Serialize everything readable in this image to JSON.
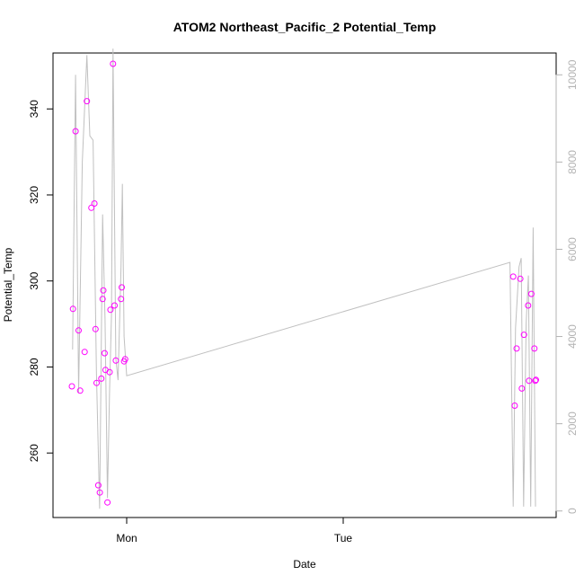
{
  "chart_data": {
    "type": "line",
    "title": "ATOM2 Northeast_Pacific_2 Potential_Temp",
    "xlabel": "Date",
    "ylabel": "Potential_Temp",
    "x_ticks": [
      "Mon",
      "Tue"
    ],
    "y_ticks": [
      "260",
      "280",
      "300",
      "320",
      "340"
    ],
    "y2_ticks": [
      "0",
      "2000",
      "4000",
      "6000",
      "8000",
      "10000"
    ],
    "ylim": [
      245,
      353
    ],
    "y2lim": [
      -150,
      10500
    ],
    "grid": false,
    "colors": {
      "points": "#ff00ff",
      "line": "#c0c0c0",
      "right_axis": "#b3b3b3",
      "frame": "#000000"
    },
    "series": [
      {
        "marker": "open-circle",
        "values": [
          {
            "x": -0.253,
            "y": 275.5
          },
          {
            "x": -0.248,
            "y": 293.5
          },
          {
            "x": -0.236,
            "y": 334.8
          },
          {
            "x": -0.222,
            "y": 288.5
          },
          {
            "x": -0.215,
            "y": 274.5
          },
          {
            "x": -0.194,
            "y": 283.5
          },
          {
            "x": -0.184,
            "y": 341.8
          },
          {
            "x": -0.163,
            "y": 317.0
          },
          {
            "x": -0.149,
            "y": 318.0
          },
          {
            "x": -0.144,
            "y": 288.8
          },
          {
            "x": -0.139,
            "y": 276.3
          },
          {
            "x": -0.131,
            "y": 252.5
          },
          {
            "x": -0.124,
            "y": 250.8
          },
          {
            "x": -0.117,
            "y": 277.3
          },
          {
            "x": -0.111,
            "y": 295.8
          },
          {
            "x": -0.108,
            "y": 297.8
          },
          {
            "x": -0.102,
            "y": 283.2
          },
          {
            "x": -0.098,
            "y": 279.3
          },
          {
            "x": -0.089,
            "y": 248.5
          },
          {
            "x": -0.079,
            "y": 278.8
          },
          {
            "x": -0.075,
            "y": 293.3
          },
          {
            "x": -0.063,
            "y": 350.5
          },
          {
            "x": -0.056,
            "y": 294.3
          },
          {
            "x": -0.05,
            "y": 281.5
          },
          {
            "x": -0.026,
            "y": 295.8
          },
          {
            "x": -0.023,
            "y": 298.5
          },
          {
            "x": -0.012,
            "y": 281.3
          },
          {
            "x": -0.007,
            "y": 281.8
          },
          {
            "x": 1.785,
            "y": 301.0
          },
          {
            "x": 1.792,
            "y": 271.0
          },
          {
            "x": 1.801,
            "y": 284.3
          },
          {
            "x": 1.818,
            "y": 300.5
          },
          {
            "x": 1.825,
            "y": 275.0
          },
          {
            "x": 1.835,
            "y": 287.5
          },
          {
            "x": 1.854,
            "y": 294.3
          },
          {
            "x": 1.858,
            "y": 276.8
          },
          {
            "x": 1.869,
            "y": 297.0
          },
          {
            "x": 1.883,
            "y": 284.3
          },
          {
            "x": 1.887,
            "y": 276.8
          },
          {
            "x": 1.89,
            "y": 277.0
          }
        ]
      },
      {
        "axis": "right",
        "values": [
          {
            "x": -0.25,
            "y": 3700
          },
          {
            "x": -0.236,
            "y": 10000
          },
          {
            "x": -0.222,
            "y": 2700
          },
          {
            "x": -0.205,
            "y": 8000
          },
          {
            "x": -0.184,
            "y": 10450
          },
          {
            "x": -0.17,
            "y": 8600
          },
          {
            "x": -0.155,
            "y": 8500
          },
          {
            "x": -0.14,
            "y": 3200
          },
          {
            "x": -0.125,
            "y": 50
          },
          {
            "x": -0.111,
            "y": 6800
          },
          {
            "x": -0.1,
            "y": 4400
          },
          {
            "x": -0.089,
            "y": 300
          },
          {
            "x": -0.079,
            "y": 2800
          },
          {
            "x": -0.07,
            "y": 4500
          },
          {
            "x": -0.063,
            "y": 10600
          },
          {
            "x": -0.05,
            "y": 3500
          },
          {
            "x": -0.04,
            "y": 3000
          },
          {
            "x": -0.026,
            "y": 5600
          },
          {
            "x": -0.02,
            "y": 7500
          },
          {
            "x": -0.012,
            "y": 4000
          },
          {
            "x": 0.0,
            "y": 3100
          },
          {
            "x": 1.77,
            "y": 5700
          },
          {
            "x": 1.785,
            "y": 100
          },
          {
            "x": 1.796,
            "y": 4200
          },
          {
            "x": 1.812,
            "y": 5600
          },
          {
            "x": 1.822,
            "y": 5800
          },
          {
            "x": 1.833,
            "y": 100
          },
          {
            "x": 1.845,
            "y": 4300
          },
          {
            "x": 1.855,
            "y": 5400
          },
          {
            "x": 1.866,
            "y": 100
          },
          {
            "x": 1.877,
            "y": 6500
          },
          {
            "x": 1.888,
            "y": 100
          }
        ]
      }
    ]
  }
}
